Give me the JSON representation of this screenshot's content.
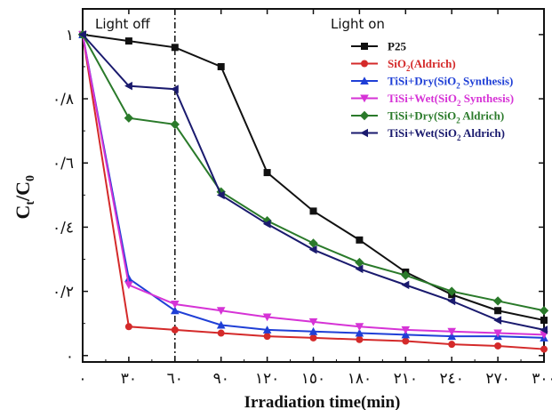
{
  "chart_data": {
    "type": "line",
    "xlabel": "Irradiation time(min)",
    "ylabel": "Ct/C0",
    "x": [
      0,
      30,
      60,
      90,
      120,
      150,
      180,
      210,
      240,
      270,
      300
    ],
    "x_tick_labels": [
      "٠",
      "٣٠",
      "٦٠",
      "٩٠",
      "١٢٠",
      "١٥٠",
      "١٨٠",
      "٢١٠",
      "٢٤٠",
      "٢٧٠",
      "٣٠٠"
    ],
    "y_ticks": [
      0,
      0.2,
      0.4,
      0.6,
      0.8,
      1.0
    ],
    "y_tick_labels": [
      "٠",
      "٠/٢",
      "٠/٤",
      "٠/٦",
      "٠/٨",
      "١"
    ],
    "xlim": [
      0,
      300
    ],
    "ylim": [
      -0.02,
      1.08
    ],
    "grid": false,
    "legend_position": "top-right",
    "annotations": {
      "light_off": "Light off",
      "light_on": "Light on",
      "divider_x": 60
    },
    "series": [
      {
        "name": "P25",
        "color": "#111111",
        "marker": "square",
        "values": [
          1.0,
          0.98,
          0.96,
          0.9,
          0.57,
          0.45,
          0.36,
          0.26,
          0.19,
          0.14,
          0.11
        ]
      },
      {
        "name": "SiO2(Aldrich)",
        "color": "#d42a2a",
        "marker": "circle",
        "values": [
          1.0,
          0.09,
          0.08,
          0.07,
          0.06,
          0.055,
          0.05,
          0.045,
          0.035,
          0.03,
          0.02
        ]
      },
      {
        "name": "TiSi+Dry(SiO2 Synthesis)",
        "color": "#1f3fd6",
        "marker": "triangle-up",
        "values": [
          1.0,
          0.24,
          0.14,
          0.095,
          0.08,
          0.075,
          0.07,
          0.065,
          0.06,
          0.06,
          0.055
        ]
      },
      {
        "name": "TiSi+Wet(SiO2 Synthesis)",
        "color": "#d633d6",
        "marker": "triangle-down",
        "values": [
          1.0,
          0.22,
          0.16,
          0.14,
          0.12,
          0.105,
          0.09,
          0.08,
          0.075,
          0.07,
          0.065
        ]
      },
      {
        "name": "TiSi+Dry(SiO2 Aldrich)",
        "color": "#2a7a2a",
        "marker": "diamond",
        "values": [
          1.0,
          0.74,
          0.72,
          0.51,
          0.42,
          0.35,
          0.29,
          0.25,
          0.2,
          0.17,
          0.14
        ]
      },
      {
        "name": "TiSi+Wet(SiO2 Aldrich)",
        "color": "#1a1a6e",
        "marker": "triangle-left",
        "values": [
          1.0,
          0.84,
          0.83,
          0.5,
          0.41,
          0.33,
          0.27,
          0.22,
          0.17,
          0.11,
          0.08
        ]
      }
    ],
    "legend_labels": [
      {
        "main": "P25",
        "sub": "",
        "rest": ""
      },
      {
        "main": "SiO",
        "sub": "2",
        "rest": "(Aldrich)"
      },
      {
        "main": "TiSi+Dry(SiO",
        "sub": "2",
        "rest": " Synthesis)"
      },
      {
        "main": "TiSi+Wet(SiO",
        "sub": "2",
        "rest": " Synthesis)"
      },
      {
        "main": "TiSi+Dry(SiO",
        "sub": "2",
        "rest": " Aldrich)"
      },
      {
        "main": "TiSi+Wet(SiO",
        "sub": "2",
        "rest": " Aldrich)"
      }
    ],
    "ylabel_parts": {
      "c1": "C",
      "s1": "t",
      "slash": "/C",
      "s2": "0"
    }
  }
}
